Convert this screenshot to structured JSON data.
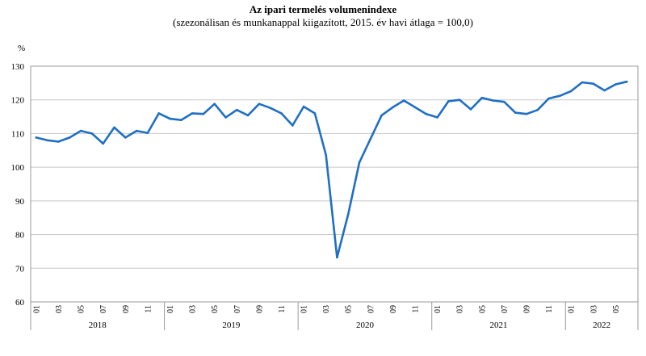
{
  "chart_data": {
    "type": "line",
    "title": "Az ipari termelés volumenindexe",
    "subtitle": "(szezonálisan és munkanappal kiigazított, 2015. év havi átlaga = 100,0)",
    "ylabel": "%",
    "ylim": [
      60,
      130
    ],
    "yticks": [
      "60",
      "70",
      "80",
      "90",
      "100",
      "110",
      "120",
      "130"
    ],
    "grid": true,
    "line_color": "#1f6fc5",
    "years": [
      "2018",
      "2019",
      "2020",
      "2021",
      "2022"
    ],
    "month_tick_labels": [
      "01",
      "03",
      "05",
      "07",
      "09",
      "11"
    ],
    "x": [
      "2018-01",
      "2018-02",
      "2018-03",
      "2018-04",
      "2018-05",
      "2018-06",
      "2018-07",
      "2018-08",
      "2018-09",
      "2018-10",
      "2018-11",
      "2018-12",
      "2019-01",
      "2019-02",
      "2019-03",
      "2019-04",
      "2019-05",
      "2019-06",
      "2019-07",
      "2019-08",
      "2019-09",
      "2019-10",
      "2019-11",
      "2019-12",
      "2020-01",
      "2020-02",
      "2020-03",
      "2020-04",
      "2020-05",
      "2020-06",
      "2020-07",
      "2020-08",
      "2020-09",
      "2020-10",
      "2020-11",
      "2020-12",
      "2021-01",
      "2021-02",
      "2021-03",
      "2021-04",
      "2021-05",
      "2021-06",
      "2021-07",
      "2021-08",
      "2021-09",
      "2021-10",
      "2021-11",
      "2021-12",
      "2022-01",
      "2022-02",
      "2022-03",
      "2022-04",
      "2022-05",
      "2022-06"
    ],
    "series": [
      {
        "values": [
          108.8,
          108.0,
          107.6,
          108.8,
          110.8,
          110.0,
          107.0,
          111.8,
          108.8,
          110.8,
          110.2,
          116.0,
          114.4,
          114.0,
          116.0,
          115.8,
          118.8,
          114.8,
          117.0,
          115.4,
          118.8,
          117.6,
          116.0,
          112.4,
          118.0,
          116.0,
          103.6,
          73.2,
          86.0,
          101.4,
          108.4,
          115.4,
          117.8,
          119.8,
          117.8,
          115.8,
          114.8,
          119.6,
          120.0,
          117.2,
          120.6,
          119.8,
          119.4,
          116.2,
          115.8,
          117.0,
          120.4,
          121.2,
          122.6,
          125.2,
          124.8,
          122.8,
          124.6,
          125.4
        ]
      }
    ]
  }
}
